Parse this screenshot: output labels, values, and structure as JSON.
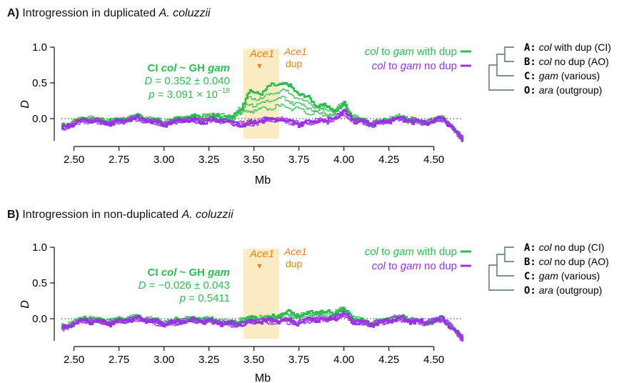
{
  "panels": [
    {
      "letter": "A)",
      "title_text": "Introgression in duplicated",
      "title_species": "A. coluzzii",
      "stat": {
        "head_prefix": "CI ",
        "head_col": "col",
        "head_mid": " ~ GH ",
        "head_gam": "gam",
        "d_symbol": "D",
        "d_value": " = 0.352 ± 0.040",
        "p_symbol": "p",
        "p_value_prefix": " = 3.091 × 10",
        "p_value_exp": "−18"
      },
      "tree": [
        {
          "key": "A:",
          "sp": "col",
          "desc": " with dup (CI)"
        },
        {
          "key": "B:",
          "sp": "col",
          "desc": " no dup (AO)"
        },
        {
          "key": "C:",
          "sp": "gam",
          "desc": " (various)"
        },
        {
          "key": "O:",
          "sp": "ara",
          "desc": " (outgroup)"
        }
      ]
    },
    {
      "letter": "B)",
      "title_text": "Introgression in non-duplicated",
      "title_species": "A. coluzzii",
      "stat": {
        "head_prefix": "CI ",
        "head_col": "col",
        "head_mid": " ~ GH ",
        "head_gam": "gam",
        "d_symbol": "D",
        "d_value": " = −0.026 ± 0.043",
        "p_symbol": "p",
        "p_value_prefix": " = 0.5411",
        "p_value_exp": ""
      },
      "tree": [
        {
          "key": "A:",
          "sp": "col",
          "desc": " no dup (CI)"
        },
        {
          "key": "B:",
          "sp": "col",
          "desc": " no dup (AO)"
        },
        {
          "key": "C:",
          "sp": "gam",
          "desc": " (various)"
        },
        {
          "key": "O:",
          "sp": "ara",
          "desc": " (outgroup)"
        }
      ]
    }
  ],
  "legend": [
    {
      "pre": "col",
      "mid": " to ",
      "post": "gam",
      "suffix": " with dup",
      "color": "#2dbd4e"
    },
    {
      "pre": "col",
      "mid": " to ",
      "post": "gam",
      "suffix": " no dup",
      "color": "#9b30e6"
    }
  ],
  "annotations": {
    "ace1_marker": "Ace1",
    "ace1_dup_line1": "Ace1",
    "ace1_dup_line2": "dup",
    "marker_symbol": "▼"
  },
  "colors": {
    "green": "#2dbd4e",
    "purple": "#9b30e6",
    "orange": "#f07d1a",
    "shade": "#fbecc4",
    "tree": "#4f6f7d"
  },
  "chart_data": [
    {
      "type": "line",
      "panel": "A",
      "xlabel": "Mb",
      "ylabel": "D",
      "xlim": [
        2.43,
        4.66
      ],
      "ylim": [
        -0.28,
        1.0
      ],
      "xticks": [
        "2.50",
        "2.75",
        "3.00",
        "3.25",
        "3.50",
        "3.75",
        "4.00",
        "4.25",
        "4.50"
      ],
      "yticks": [
        "0.0",
        "0.5",
        "1.0"
      ],
      "zero_line": "dotted",
      "shaded_region_mb": [
        3.44,
        3.64
      ],
      "ace1_position_mb": 3.49,
      "series": [
        {
          "name": "col to gam with dup",
          "color": "#2dbd4e",
          "points": [
            [
              2.43,
              -0.12
            ],
            [
              2.55,
              0.0
            ],
            [
              2.7,
              -0.04
            ],
            [
              2.85,
              0.02
            ],
            [
              3.0,
              -0.06
            ],
            [
              3.1,
              0.0
            ],
            [
              3.2,
              0.02
            ],
            [
              3.3,
              0.04
            ],
            [
              3.38,
              0.0
            ],
            [
              3.44,
              0.22
            ],
            [
              3.46,
              0.35
            ],
            [
              3.5,
              0.36
            ],
            [
              3.55,
              0.38
            ],
            [
              3.6,
              0.46
            ],
            [
              3.65,
              0.5
            ],
            [
              3.7,
              0.44
            ],
            [
              3.75,
              0.36
            ],
            [
              3.8,
              0.28
            ],
            [
              3.85,
              0.2
            ],
            [
              3.9,
              0.16
            ],
            [
              3.95,
              0.12
            ],
            [
              4.0,
              0.2
            ],
            [
              4.05,
              0.02
            ],
            [
              4.15,
              -0.08
            ],
            [
              4.3,
              0.02
            ],
            [
              4.45,
              -0.06
            ],
            [
              4.55,
              0.02
            ],
            [
              4.66,
              -0.3
            ]
          ]
        },
        {
          "name": "col to gam no dup",
          "color": "#9b30e6",
          "points": [
            [
              2.43,
              -0.14
            ],
            [
              2.55,
              -0.02
            ],
            [
              2.7,
              -0.06
            ],
            [
              2.85,
              0.0
            ],
            [
              3.0,
              -0.08
            ],
            [
              3.1,
              -0.02
            ],
            [
              3.2,
              -0.04
            ],
            [
              3.3,
              -0.02
            ],
            [
              3.38,
              -0.06
            ],
            [
              3.44,
              -0.08
            ],
            [
              3.5,
              -0.06
            ],
            [
              3.55,
              -0.02
            ],
            [
              3.6,
              0.0
            ],
            [
              3.65,
              -0.02
            ],
            [
              3.7,
              -0.04
            ],
            [
              3.75,
              -0.08
            ],
            [
              3.8,
              -0.06
            ],
            [
              3.85,
              -0.02
            ],
            [
              3.9,
              -0.04
            ],
            [
              3.95,
              0.02
            ],
            [
              4.0,
              0.08
            ],
            [
              4.05,
              -0.02
            ],
            [
              4.15,
              -0.08
            ],
            [
              4.3,
              0.0
            ],
            [
              4.45,
              -0.06
            ],
            [
              4.55,
              0.0
            ],
            [
              4.66,
              -0.3
            ]
          ]
        }
      ]
    },
    {
      "type": "line",
      "panel": "B",
      "xlabel": "Mb",
      "ylabel": "D",
      "xlim": [
        2.43,
        4.66
      ],
      "ylim": [
        -0.28,
        1.0
      ],
      "xticks": [
        "2.50",
        "2.75",
        "3.00",
        "3.25",
        "3.50",
        "3.75",
        "4.00",
        "4.25",
        "4.50"
      ],
      "yticks": [
        "0.0",
        "0.5",
        "1.0"
      ],
      "zero_line": "dotted",
      "shaded_region_mb": [
        3.44,
        3.64
      ],
      "ace1_position_mb": 3.49,
      "series": [
        {
          "name": "col to gam with dup",
          "color": "#2dbd4e",
          "points": [
            [
              2.43,
              -0.12
            ],
            [
              2.55,
              0.0
            ],
            [
              2.7,
              -0.04
            ],
            [
              2.85,
              0.02
            ],
            [
              3.0,
              -0.06
            ],
            [
              3.1,
              -0.02
            ],
            [
              3.2,
              0.0
            ],
            [
              3.3,
              -0.04
            ],
            [
              3.4,
              -0.06
            ],
            [
              3.44,
              -0.02
            ],
            [
              3.5,
              0.0
            ],
            [
              3.55,
              0.0
            ],
            [
              3.6,
              0.02
            ],
            [
              3.65,
              0.06
            ],
            [
              3.7,
              0.08
            ],
            [
              3.75,
              0.06
            ],
            [
              3.8,
              0.08
            ],
            [
              3.85,
              0.1
            ],
            [
              3.9,
              0.08
            ],
            [
              3.95,
              0.1
            ],
            [
              4.0,
              0.12
            ],
            [
              4.05,
              0.0
            ],
            [
              4.15,
              -0.06
            ],
            [
              4.3,
              0.02
            ],
            [
              4.45,
              -0.06
            ],
            [
              4.55,
              0.0
            ],
            [
              4.66,
              -0.28
            ]
          ]
        },
        {
          "name": "col to gam no dup",
          "color": "#9b30e6",
          "points": [
            [
              2.43,
              -0.14
            ],
            [
              2.55,
              -0.02
            ],
            [
              2.7,
              -0.06
            ],
            [
              2.85,
              0.0
            ],
            [
              3.0,
              -0.08
            ],
            [
              3.1,
              -0.04
            ],
            [
              3.2,
              -0.02
            ],
            [
              3.3,
              -0.06
            ],
            [
              3.4,
              -0.08
            ],
            [
              3.44,
              -0.06
            ],
            [
              3.5,
              -0.04
            ],
            [
              3.55,
              -0.02
            ],
            [
              3.6,
              -0.04
            ],
            [
              3.65,
              -0.02
            ],
            [
              3.7,
              -0.04
            ],
            [
              3.75,
              -0.06
            ],
            [
              3.8,
              -0.02
            ],
            [
              3.85,
              0.0
            ],
            [
              3.9,
              -0.02
            ],
            [
              3.95,
              0.02
            ],
            [
              4.0,
              0.06
            ],
            [
              4.05,
              -0.04
            ],
            [
              4.15,
              -0.08
            ],
            [
              4.3,
              0.0
            ],
            [
              4.45,
              -0.06
            ],
            [
              4.55,
              0.0
            ],
            [
              4.66,
              -0.3
            ]
          ]
        }
      ]
    }
  ]
}
